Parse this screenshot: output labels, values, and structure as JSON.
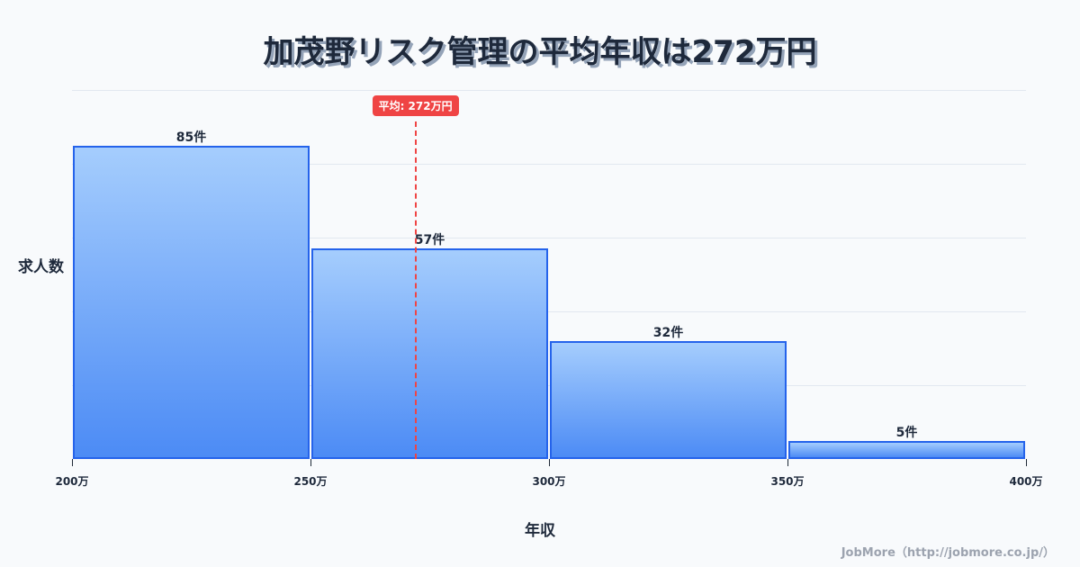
{
  "title": "加茂野リスク管理の平均年収は272万円",
  "chart_data": {
    "type": "bar",
    "title": "加茂野リスク管理の平均年収は272万円",
    "xlabel": "年収",
    "ylabel": "求人数",
    "bins": [
      {
        "from": 200,
        "to": 250,
        "value": 85,
        "label": "85件"
      },
      {
        "from": 250,
        "to": 300,
        "value": 57,
        "label": "57件"
      },
      {
        "from": 300,
        "to": 350,
        "value": 32,
        "label": "32件"
      },
      {
        "from": 350,
        "to": 400,
        "value": 5,
        "label": "5件"
      }
    ],
    "categories": [
      "200万-250万",
      "250万-300万",
      "300万-350万",
      "350万-400万"
    ],
    "values": [
      85,
      57,
      32,
      5
    ],
    "x_ticks": [
      "200万",
      "250万",
      "300万",
      "350万",
      "400万"
    ],
    "xlim": [
      200,
      400
    ],
    "ylim": [
      0,
      100
    ],
    "grid": true,
    "mean": {
      "value": 272,
      "label": "平均: 272万円",
      "color": "#ef4444"
    },
    "bar_color": "#4c8bf5",
    "bar_border_color": "#2563eb"
  },
  "credit": "JobMore（http://jobmore.co.jp/）"
}
